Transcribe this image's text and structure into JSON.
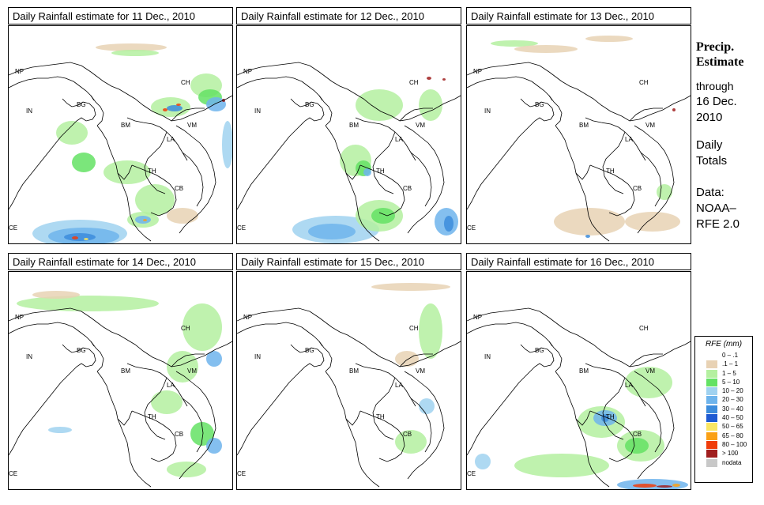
{
  "panels": [
    {
      "title": "Daily Rainfall estimate for  11 Dec., 2010",
      "rain_level": "heavy"
    },
    {
      "title": "Daily Rainfall estimate for  12 Dec., 2010",
      "rain_level": "moderate"
    },
    {
      "title": "Daily Rainfall estimate for  13 Dec., 2010",
      "rain_level": "light"
    },
    {
      "title": "Daily Rainfall estimate for  14 Dec., 2010",
      "rain_level": "light"
    },
    {
      "title": "Daily Rainfall estimate for  15 Dec., 2010",
      "rain_level": "light"
    },
    {
      "title": "Daily Rainfall estimate for  16 Dec., 2010",
      "rain_level": "moderate"
    }
  ],
  "map_labels": {
    "np": "NP",
    "ch": "CH",
    "in": "IN",
    "bg": "BG",
    "bm": "BM",
    "vm": "VM",
    "la": "LA",
    "th": "TH",
    "cb": "CB",
    "ce": "CE"
  },
  "side": {
    "title_line1": "Precip.",
    "title_line2": "Estimate",
    "through": "through",
    "date_line1": "16 Dec.",
    "date_line2": "2010",
    "daily_line1": "Daily",
    "daily_line2": "Totals",
    "data_line1": "Data:",
    "data_line2": "NOAA–",
    "data_line3": "RFE 2.0"
  },
  "legend": {
    "title": "RFE (mm)",
    "items": [
      {
        "label": "0 – .1",
        "color": "#ffffff"
      },
      {
        "label": ".1 – 1",
        "color": "#e8d2b4"
      },
      {
        "label": "1 – 5",
        "color": "#b4f0a0"
      },
      {
        "label": "5 – 10",
        "color": "#64e264"
      },
      {
        "label": "10 – 20",
        "color": "#a0d2f0"
      },
      {
        "label": "20 – 30",
        "color": "#6eb4ec"
      },
      {
        "label": "30 – 40",
        "color": "#3c8cdc"
      },
      {
        "label": "40 – 50",
        "color": "#1e5ad2"
      },
      {
        "label": "50 – 65",
        "color": "#fae664"
      },
      {
        "label": "65 – 80",
        "color": "#faa014"
      },
      {
        "label": "80 – 100",
        "color": "#f03c0a"
      },
      {
        "label": "> 100",
        "color": "#a01e1e"
      },
      {
        "label": "nodata",
        "color": "#c8c8c8"
      }
    ]
  }
}
